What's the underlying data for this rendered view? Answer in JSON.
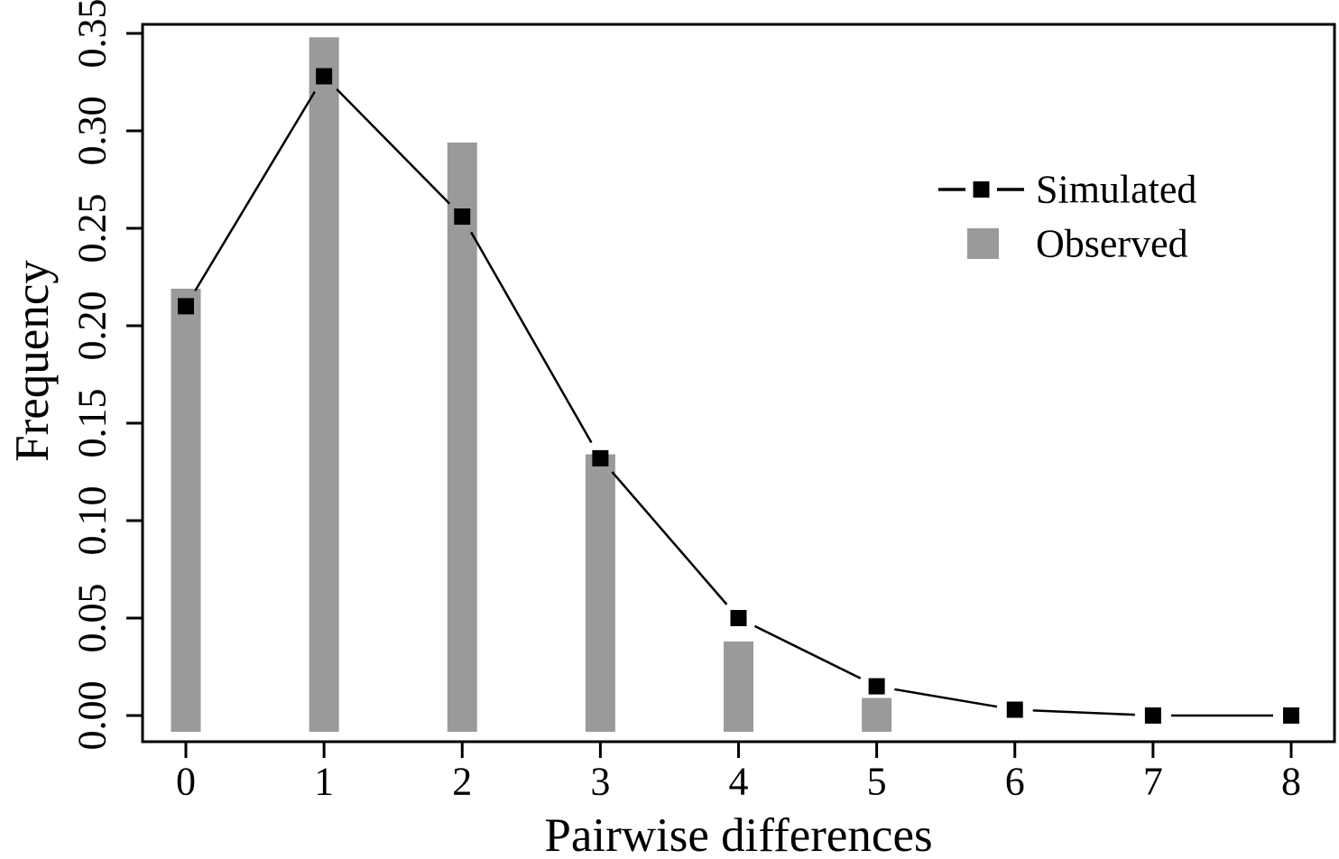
{
  "chart_data": {
    "type": "bar",
    "title": "",
    "xlabel": "Pairwise differences",
    "ylabel": "Frequency",
    "categories": [
      "0",
      "1",
      "2",
      "3",
      "4",
      "5",
      "6",
      "7",
      "8"
    ],
    "series": [
      {
        "name": "Observed",
        "render": "bar",
        "color": "#9a9a9a",
        "values": [
          0.219,
          0.348,
          0.294,
          0.134,
          0.038,
          0.009,
          0.0,
          0.0,
          0.0
        ]
      },
      {
        "name": "Simulated",
        "render": "line-with-square-markers",
        "color": "#000000",
        "values": [
          0.21,
          0.328,
          0.256,
          0.132,
          0.05,
          0.015,
          0.003,
          0.0,
          0.0
        ]
      }
    ],
    "y_ticks": [
      "0.00",
      "0.05",
      "0.10",
      "0.15",
      "0.20",
      "0.25",
      "0.30",
      "0.35"
    ],
    "y_tick_values": [
      0.0,
      0.05,
      0.1,
      0.15,
      0.2,
      0.25,
      0.3,
      0.35
    ],
    "ylim": [
      0,
      0.35
    ],
    "xlim_categories": [
      0,
      8
    ],
    "grid": false,
    "legend_position": "upper-right",
    "legend": [
      {
        "label": "Simulated",
        "swatch": "dash-square-dash"
      },
      {
        "label": "Observed",
        "swatch": "filled-gray-square"
      }
    ]
  },
  "colors": {
    "background": "#ffffff",
    "bar_fill": "#9a9a9a",
    "line": "#000000",
    "text": "#000000",
    "axis": "#000000"
  }
}
